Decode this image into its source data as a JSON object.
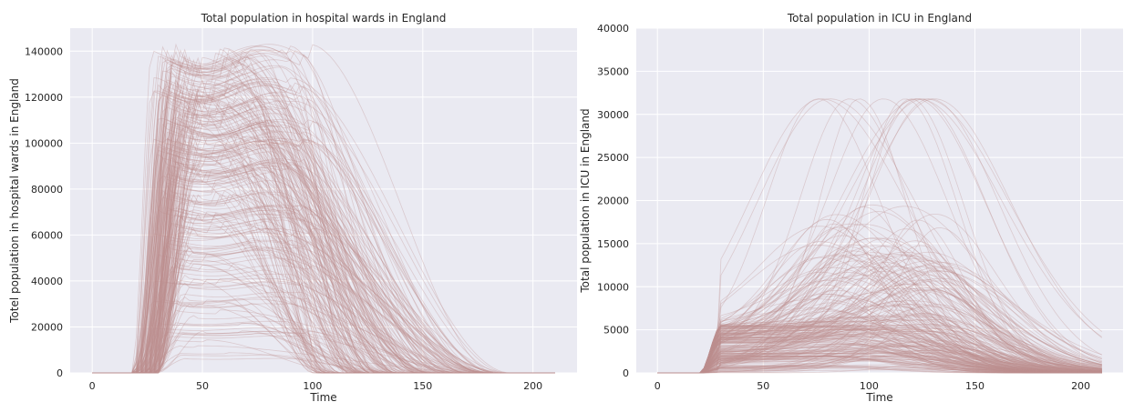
{
  "chart_data": [
    {
      "type": "line",
      "title": "Total population in hospital wards in England",
      "xlabel": "Time",
      "ylabel": "Totel population in hospital wards in England",
      "xlim": [
        -10,
        220
      ],
      "ylim": [
        0,
        150000
      ],
      "xticks": [
        0,
        50,
        100,
        150,
        200
      ],
      "yticks": [
        0,
        20000,
        40000,
        60000,
        80000,
        100000,
        120000,
        140000
      ],
      "grid": true,
      "legend": "none",
      "line_color": "#bc8f8f",
      "background": "#eaeaf2",
      "series_count": 250,
      "series_shape": {
        "rise_start_range": [
          18,
          30
        ],
        "rise_duration_range": [
          8,
          22
        ],
        "peak_value_range": [
          0,
          144000
        ],
        "plateau_end_range": [
          45,
          100
        ],
        "decay_end_range": [
          100,
          190
        ],
        "end_x": 210
      }
    },
    {
      "type": "line",
      "title": "Total population in ICU in England",
      "xlabel": "Time",
      "ylabel": "Total population in ICU in England",
      "xlim": [
        -10,
        220
      ],
      "ylim": [
        0,
        40000
      ],
      "xticks": [
        0,
        50,
        100,
        150,
        200
      ],
      "yticks": [
        0,
        5000,
        10000,
        15000,
        20000,
        25000,
        30000,
        35000,
        40000
      ],
      "grid": true,
      "legend": "none",
      "line_color": "#bc8f8f",
      "background": "#eaeaf2",
      "series_count": 250,
      "series_shape": {
        "plateau_start": 30,
        "plateau_value_range": [
          0,
          5500
        ],
        "peak_time_range": [
          75,
          135
        ],
        "peak_value_range": [
          0,
          31800
        ],
        "decay_end": 210,
        "end_x": 210
      }
    }
  ]
}
